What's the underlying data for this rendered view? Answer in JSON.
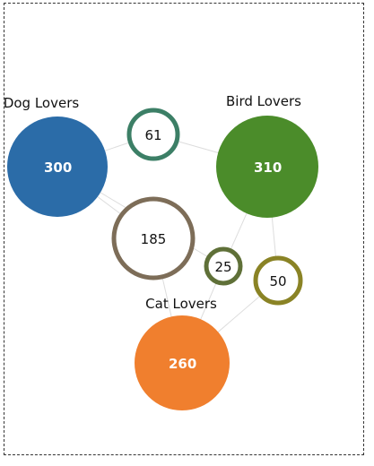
{
  "diagram": {
    "groups": [
      {
        "id": "dog",
        "label": "Dog Lovers",
        "value": "300",
        "color": "#2b6ca8",
        "kind": "set"
      },
      {
        "id": "bird",
        "label": "Bird Lovers",
        "value": "310",
        "color": "#4b8c2a",
        "kind": "set"
      },
      {
        "id": "cat",
        "label": "Cat Lovers",
        "value": "260",
        "color": "#f07f2e",
        "kind": "set"
      }
    ],
    "overlaps": [
      {
        "id": "dog-bird",
        "value": "61",
        "color": "#3c7f66",
        "members": [
          "dog",
          "bird"
        ]
      },
      {
        "id": "dog-cat",
        "value": "185",
        "color": "#7d6d58",
        "members": [
          "dog",
          "cat"
        ]
      },
      {
        "id": "bird-cat",
        "value": "50",
        "color": "#8a8325",
        "members": [
          "bird",
          "cat"
        ]
      },
      {
        "id": "all",
        "value": "25",
        "color": "#5f7038",
        "members": [
          "dog",
          "bird",
          "cat"
        ]
      }
    ]
  }
}
